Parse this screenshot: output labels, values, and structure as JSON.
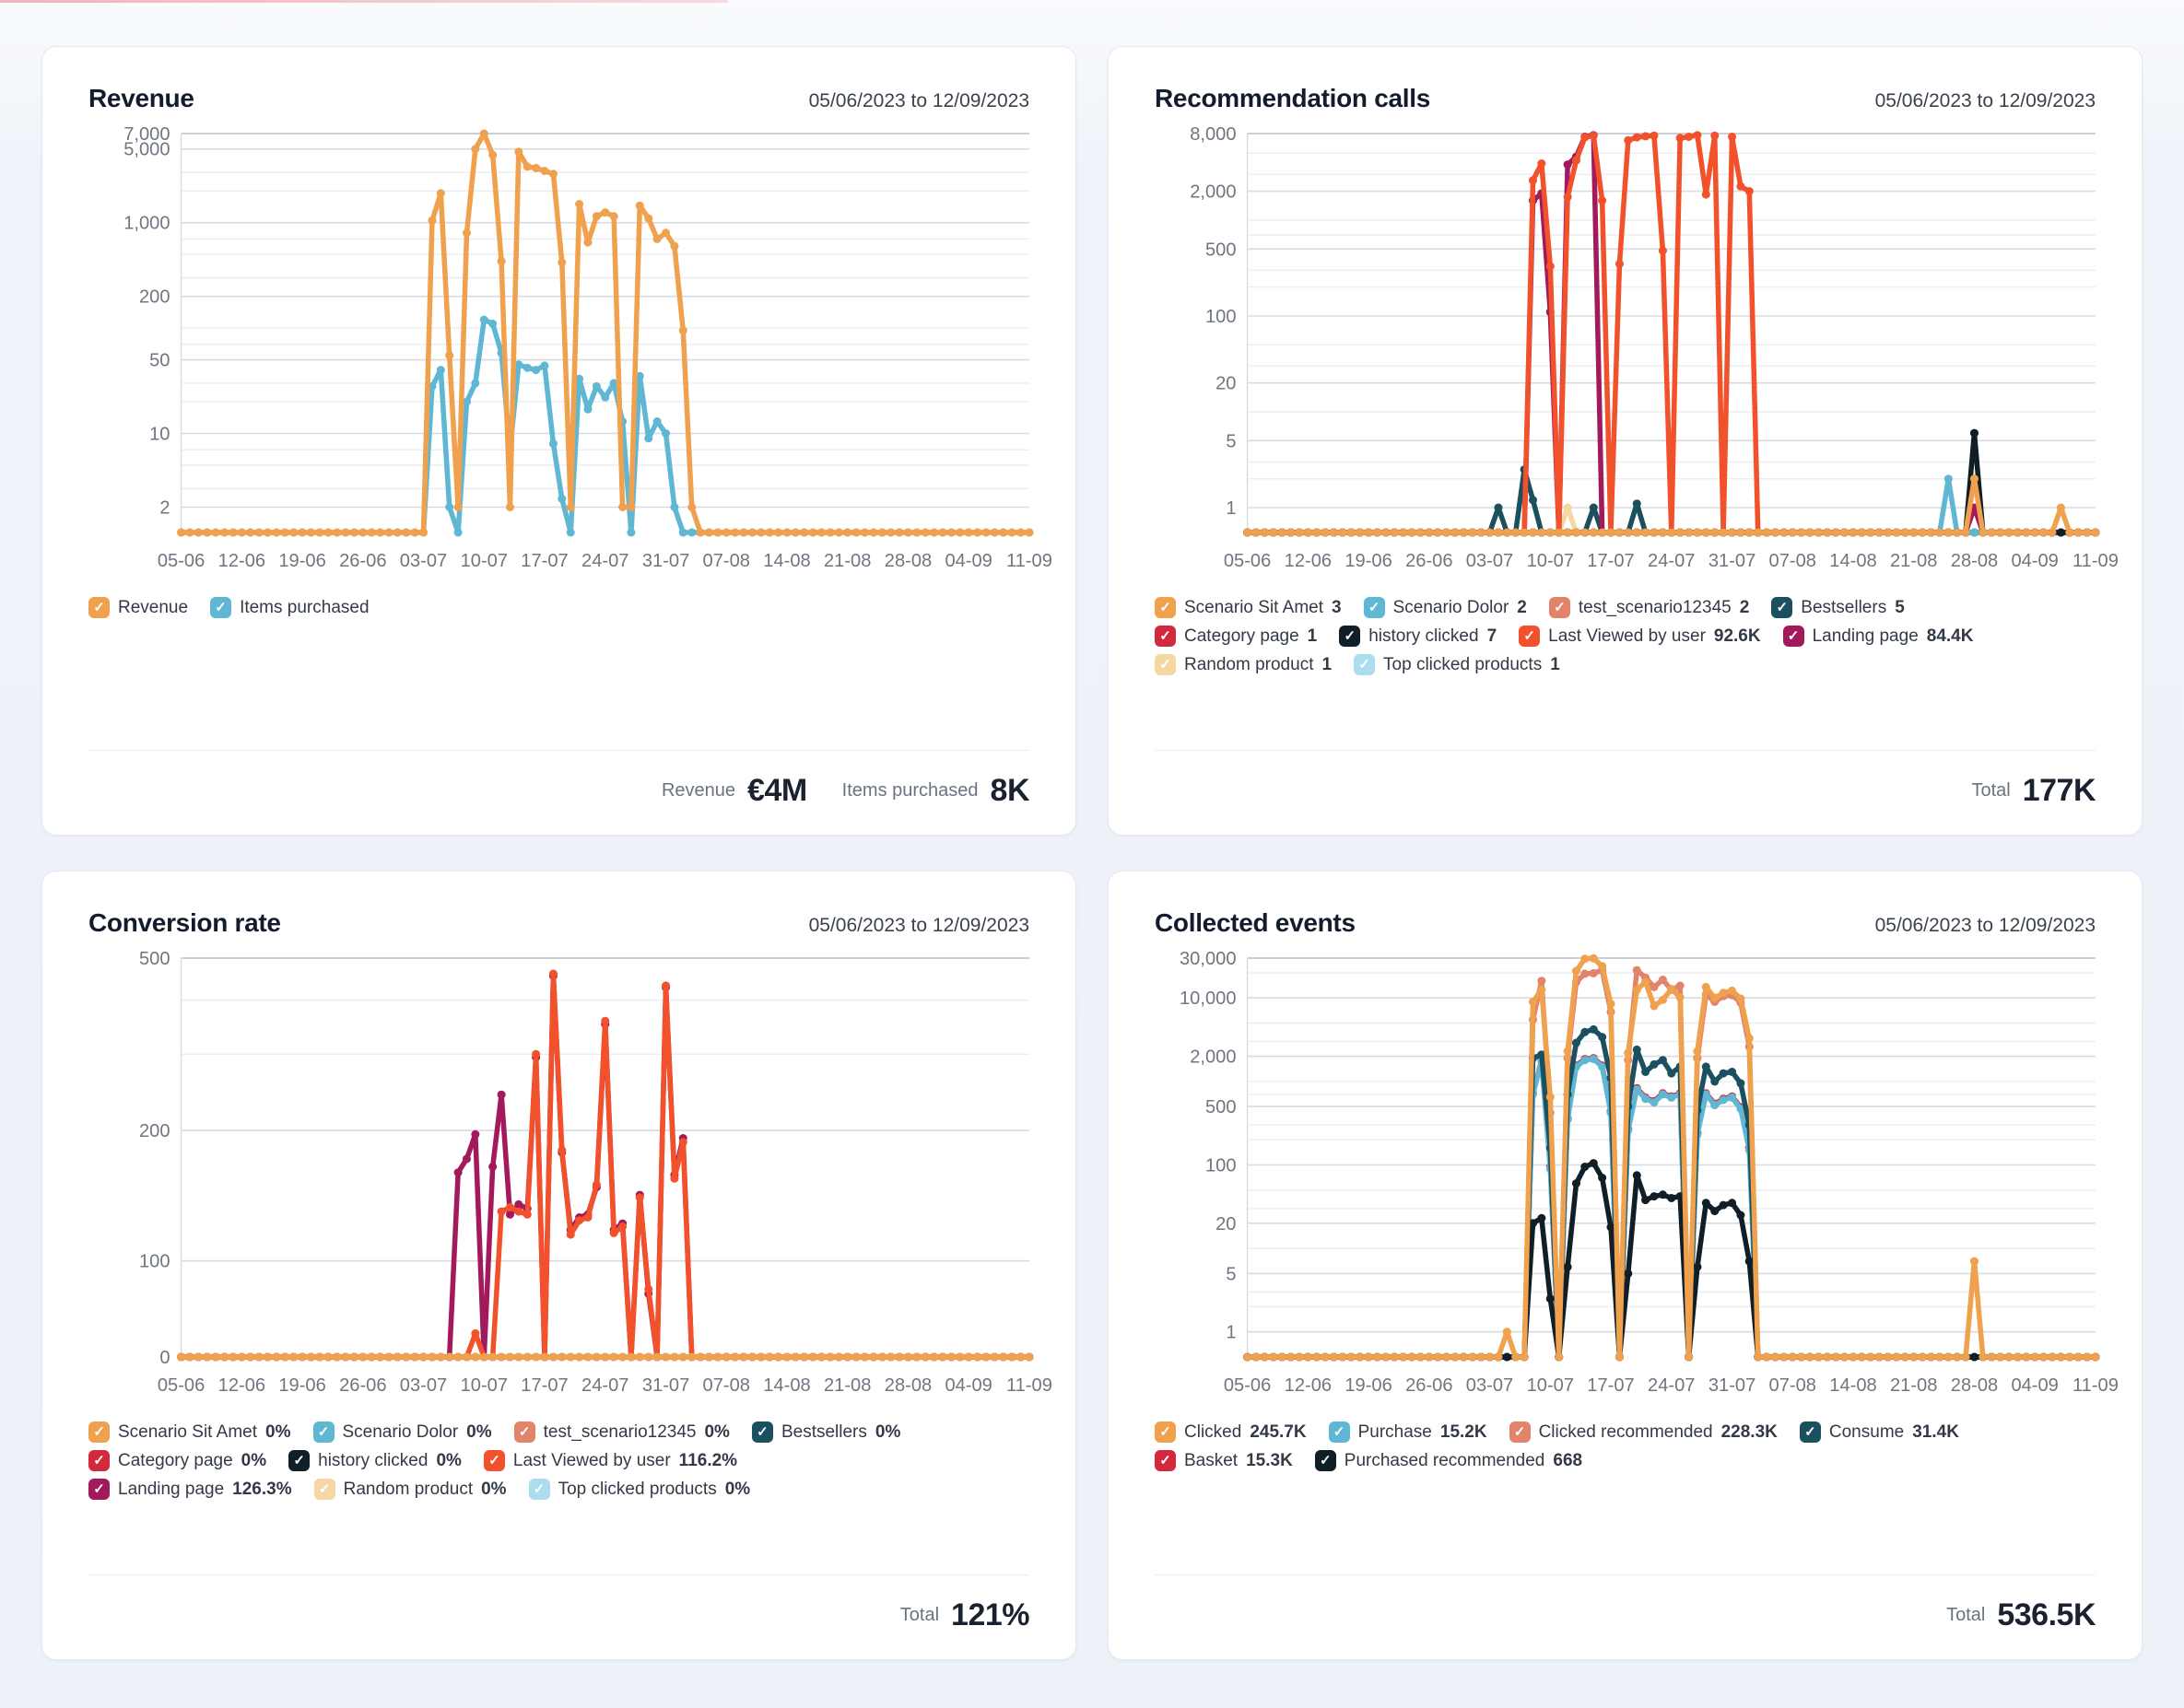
{
  "x_labels": [
    "05-06",
    "12-06",
    "19-06",
    "26-06",
    "03-07",
    "10-07",
    "17-07",
    "24-07",
    "31-07",
    "07-08",
    "14-08",
    "21-08",
    "28-08",
    "04-09",
    "11-09"
  ],
  "n_points": 99,
  "palette": {
    "orange": "#EFA14D",
    "blue": "#5FB7D4",
    "salmon": "#E2836B",
    "teal": "#1B505E",
    "red": "#D22A3C",
    "black": "#101E28",
    "orange_red": "#F1512B",
    "magenta": "#A21A5C",
    "pale_orange": "#F5D7A4",
    "pale_blue": "#ABDDEE",
    "grid_top": "#b9bfc9",
    "grid_major": "#d7dbe2",
    "grid_minor": "#ecedf1",
    "axis_text": "#6f7681"
  },
  "cards": [
    {
      "id": "revenue",
      "title": "Revenue",
      "date_range": "05/06/2023 to 12/09/2023",
      "chart_index": 0,
      "legend_rows": [
        [
          {
            "label": "Revenue",
            "value": "",
            "color": "#EFA14D"
          },
          {
            "label": "Items purchased",
            "value": "",
            "color": "#5FB7D4"
          }
        ]
      ],
      "footer": [
        {
          "label": "Revenue",
          "value": "€4M"
        },
        {
          "label": "Items purchased",
          "value": "8K"
        }
      ]
    },
    {
      "id": "recommendation-calls",
      "title": "Recommendation calls",
      "date_range": "05/06/2023 to 12/09/2023",
      "chart_index": 1,
      "legend_rows": [
        [
          {
            "label": "Scenario Sit Amet",
            "value": "3",
            "color": "#EFA14D"
          },
          {
            "label": "Scenario Dolor",
            "value": "2",
            "color": "#5FB7D4"
          },
          {
            "label": "test_scenario12345",
            "value": "2",
            "color": "#E2836B"
          },
          {
            "label": "Bestsellers",
            "value": "5",
            "color": "#1B505E"
          }
        ],
        [
          {
            "label": "Category page",
            "value": "1",
            "color": "#D22A3C"
          },
          {
            "label": "history clicked",
            "value": "7",
            "color": "#101E28"
          },
          {
            "label": "Last Viewed by user",
            "value": "92.6K",
            "color": "#F1512B"
          },
          {
            "label": "Landing page",
            "value": "84.4K",
            "color": "#A21A5C"
          }
        ],
        [
          {
            "label": "Random product",
            "value": "1",
            "color": "#F5D7A4"
          },
          {
            "label": "Top clicked products",
            "value": "1",
            "color": "#ABDDEE"
          }
        ]
      ],
      "footer": [
        {
          "label": "Total",
          "value": "177K"
        }
      ]
    },
    {
      "id": "conversion-rate",
      "title": "Conversion rate",
      "date_range": "05/06/2023 to 12/09/2023",
      "chart_index": 2,
      "legend_rows": [
        [
          {
            "label": "Scenario Sit Amet",
            "value": "0%",
            "color": "#EFA14D"
          },
          {
            "label": "Scenario Dolor",
            "value": "0%",
            "color": "#5FB7D4"
          },
          {
            "label": "test_scenario12345",
            "value": "0%",
            "color": "#E2836B"
          },
          {
            "label": "Bestsellers",
            "value": "0%",
            "color": "#1B505E"
          }
        ],
        [
          {
            "label": "Category page",
            "value": "0%",
            "color": "#D22A3C"
          },
          {
            "label": "history clicked",
            "value": "0%",
            "color": "#101E28"
          },
          {
            "label": "Last Viewed by user",
            "value": "116.2%",
            "color": "#F1512B"
          }
        ],
        [
          {
            "label": "Landing page",
            "value": "126.3%",
            "color": "#A21A5C"
          },
          {
            "label": "Random product",
            "value": "0%",
            "color": "#F5D7A4"
          },
          {
            "label": "Top clicked products",
            "value": "0%",
            "color": "#ABDDEE"
          }
        ]
      ],
      "footer": [
        {
          "label": "Total",
          "value": "121%"
        }
      ]
    },
    {
      "id": "collected-events",
      "title": "Collected events",
      "date_range": "05/06/2023 to 12/09/2023",
      "chart_index": 3,
      "legend_rows": [
        [
          {
            "label": "Clicked",
            "value": "245.7K",
            "color": "#EFA14D"
          },
          {
            "label": "Purchase",
            "value": "15.2K",
            "color": "#5FB7D4"
          },
          {
            "label": "Clicked recommended",
            "value": "228.3K",
            "color": "#E2836B"
          },
          {
            "label": "Consume",
            "value": "31.4K",
            "color": "#1B505E"
          }
        ],
        [
          {
            "label": "Basket",
            "value": "15.3K",
            "color": "#D22A3C"
          },
          {
            "label": "Purchased recommended",
            "value": "668",
            "color": "#101E28"
          }
        ]
      ],
      "footer": [
        {
          "label": "Total",
          "value": "536.5K"
        }
      ]
    }
  ],
  "chart_data": [
    {
      "type": "line",
      "title": "Revenue",
      "y_scale": "log",
      "x_tick_step_days": 7,
      "vmax": 7000,
      "floor": 1.15,
      "ticks": [
        {
          "label": "7,000",
          "v": 7000
        },
        {
          "label": "5,000",
          "v": 5000
        },
        {
          "label": "1,000",
          "v": 1000
        },
        {
          "label": "200",
          "v": 200
        },
        {
          "label": "50",
          "v": 50
        },
        {
          "label": "10",
          "v": 10
        },
        {
          "label": "2",
          "v": 2
        }
      ],
      "minor": [
        3000,
        2000,
        700,
        500,
        300,
        100,
        70,
        30,
        20,
        7,
        5,
        3
      ],
      "series": [
        {
          "name": "Items purchased",
          "color": "#5FB7D4",
          "points": {
            "29": 28,
            "30": 40,
            "31": 2,
            "33": 20,
            "34": 30,
            "35": 120,
            "36": 110,
            "37": 58,
            "38": 7,
            "39": 45,
            "40": 42,
            "41": 40,
            "42": 44,
            "43": 8,
            "44": 2.4,
            "46": 33,
            "47": 17,
            "48": 28,
            "49": 22,
            "50": 30,
            "51": 13,
            "53": 35,
            "54": 9,
            "55": 13,
            "56": 10,
            "57": 2
          }
        },
        {
          "name": "Revenue",
          "color": "#EFA14D",
          "points": {
            "29": 1050,
            "30": 1900,
            "31": 55,
            "32": 2,
            "33": 800,
            "34": 5000,
            "35": 7000,
            "36": 4400,
            "37": 430,
            "38": 2,
            "39": 4700,
            "40": 3400,
            "41": 3300,
            "42": 3100,
            "43": 2900,
            "44": 420,
            "45": 2,
            "46": 1500,
            "47": 650,
            "48": 1150,
            "49": 1250,
            "50": 1150,
            "51": 2,
            "52": 2,
            "53": 1450,
            "54": 1100,
            "55": 700,
            "56": 800,
            "57": 600,
            "58": 95,
            "59": 2
          }
        }
      ]
    },
    {
      "type": "line",
      "title": "Recommendation calls",
      "y_scale": "log",
      "x_tick_step_days": 7,
      "vmax": 8000,
      "floor": 0.55,
      "ticks": [
        {
          "label": "8,000",
          "v": 8000
        },
        {
          "label": "2,000",
          "v": 2000
        },
        {
          "label": "500",
          "v": 500
        },
        {
          "label": "100",
          "v": 100
        },
        {
          "label": "20",
          "v": 20
        },
        {
          "label": "5",
          "v": 5
        },
        {
          "label": "1",
          "v": 1
        }
      ],
      "minor": [
        5000,
        3000,
        1000,
        700,
        300,
        200,
        50,
        30,
        10,
        3,
        2
      ],
      "series": [
        {
          "name": "Top clicked products",
          "color": "#ABDDEE",
          "points": {}
        },
        {
          "name": "Random product",
          "color": "#F5D7A4",
          "points": {
            "37": 1
          }
        },
        {
          "name": "test_scenario12345",
          "color": "#E2836B",
          "points": {}
        },
        {
          "name": "Category page",
          "color": "#D22A3C",
          "points": {}
        },
        {
          "name": "Bestsellers",
          "color": "#1B505E",
          "points": {
            "29": 1,
            "32": 2.5,
            "33": 1.2,
            "40": 1,
            "45": 1.1
          }
        },
        {
          "name": "Landing page",
          "color": "#A21A5C",
          "points": {
            "33": 1600,
            "34": 1900,
            "35": 110,
            "37": 3800,
            "38": 4600,
            "39": 7400,
            "40": 7700,
            "84": 1
          }
        },
        {
          "name": "Last Viewed by user",
          "color": "#F1512B",
          "points": {
            "33": 2600,
            "34": 3900,
            "35": 330,
            "37": 1750,
            "38": 4200,
            "39": 7300,
            "40": 7600,
            "41": 1600,
            "43": 350,
            "44": 6800,
            "45": 7300,
            "46": 7500,
            "47": 7600,
            "48": 480,
            "50": 7200,
            "51": 7400,
            "52": 7700,
            "53": 1850,
            "54": 7600,
            "56": 7400,
            "57": 2250,
            "58": 2000
          }
        },
        {
          "name": "Scenario Dolor",
          "color": "#5FB7D4",
          "points": {
            "81": 2
          }
        },
        {
          "name": "history clicked",
          "color": "#101E28",
          "points": {
            "84": 6
          }
        },
        {
          "name": "Scenario Sit Amet",
          "color": "#EFA14D",
          "points": {
            "84": 2,
            "94": 1
          }
        }
      ]
    },
    {
      "type": "line",
      "title": "Conversion rate",
      "y_scale": "log",
      "x_tick_step_days": 7,
      "vmax": 500,
      "floor": 60,
      "ticks": [
        {
          "label": "500",
          "v": 500
        },
        {
          "label": "200",
          "v": 200
        },
        {
          "label": "100",
          "v": 100
        },
        {
          "label": "0",
          "v": 0
        }
      ],
      "minor": [
        400,
        300
      ],
      "series": [
        {
          "name": "Scenario Dolor",
          "color": "#5FB7D4",
          "points": {}
        },
        {
          "name": "test_scenario12345",
          "color": "#E2836B",
          "points": {}
        },
        {
          "name": "Bestsellers",
          "color": "#1B505E",
          "points": {}
        },
        {
          "name": "Category page",
          "color": "#D22A3C",
          "points": {}
        },
        {
          "name": "history clicked",
          "color": "#101E28",
          "points": {}
        },
        {
          "name": "Random product",
          "color": "#F5D7A4",
          "points": {}
        },
        {
          "name": "Top clicked products",
          "color": "#ABDDEE",
          "points": {}
        },
        {
          "name": "Landing page",
          "color": "#A21A5C",
          "points": {
            "32": 160,
            "33": 172,
            "34": 196,
            "35": 45,
            "36": 165,
            "37": 242,
            "38": 128,
            "39": 135,
            "40": 132,
            "41": 295,
            "43": 455,
            "44": 178,
            "45": 118,
            "46": 126,
            "47": 128,
            "48": 148,
            "49": 352,
            "50": 118,
            "51": 122,
            "53": 142,
            "54": 84,
            "56": 428,
            "57": 158,
            "58": 192,
            "59": 28
          }
        },
        {
          "name": "Last Viewed by user",
          "color": "#F1512B",
          "points": {
            "32": 35,
            "33": 42,
            "34": 68,
            "36": 55,
            "37": 130,
            "38": 133,
            "39": 130,
            "40": 128,
            "41": 300,
            "43": 460,
            "44": 180,
            "45": 115,
            "46": 124,
            "47": 126,
            "48": 150,
            "49": 358,
            "50": 116,
            "51": 120,
            "53": 140,
            "54": 86,
            "56": 432,
            "57": 155,
            "58": 188,
            "59": 25
          }
        },
        {
          "name": "Scenario Sit Amet",
          "color": "#EFA14D",
          "points": {}
        }
      ]
    },
    {
      "type": "line",
      "title": "Collected events",
      "y_scale": "log",
      "x_tick_step_days": 7,
      "vmax": 30000,
      "floor": 0.5,
      "ticks": [
        {
          "label": "30,000",
          "v": 30000
        },
        {
          "label": "10,000",
          "v": 10000
        },
        {
          "label": "2,000",
          "v": 2000
        },
        {
          "label": "500",
          "v": 500
        },
        {
          "label": "100",
          "v": 100
        },
        {
          "label": "20",
          "v": 20
        },
        {
          "label": "5",
          "v": 5
        },
        {
          "label": "1",
          "v": 1
        }
      ],
      "minor": [
        20000,
        5000,
        3000,
        1000,
        700,
        300,
        200,
        50,
        30,
        10,
        3,
        2
      ],
      "series": [
        {
          "name": "Clicked recommended",
          "color": "#E2836B",
          "points": {
            "33": 5500,
            "34": 16000,
            "35": 420,
            "37": 1900,
            "38": 15500,
            "39": 19500,
            "40": 19800,
            "41": 21500,
            "42": 6800,
            "44": 1800,
            "45": 21500,
            "46": 17500,
            "47": 13500,
            "48": 16500,
            "49": 12500,
            "50": 14000,
            "52": 1900,
            "53": 11000,
            "54": 9000,
            "55": 10500,
            "56": 10800,
            "57": 8800,
            "58": 2600
          }
        },
        {
          "name": "Basket",
          "color": "#D22A3C",
          "points": {
            "33": 720,
            "34": 1800,
            "35": 95,
            "37": 360,
            "38": 1550,
            "39": 1850,
            "40": 1900,
            "41": 1550,
            "42": 440,
            "44": 270,
            "45": 830,
            "46": 640,
            "47": 580,
            "48": 720,
            "49": 660,
            "50": 720,
            "52": 240,
            "53": 720,
            "54": 540,
            "55": 620,
            "56": 660,
            "57": 490,
            "58": 160
          }
        },
        {
          "name": "Purchase",
          "color": "#5FB7D4",
          "points": {
            "33": 700,
            "34": 1750,
            "35": 90,
            "37": 350,
            "38": 1500,
            "39": 1800,
            "40": 1850,
            "41": 1500,
            "42": 420,
            "44": 260,
            "45": 800,
            "46": 620,
            "47": 560,
            "48": 700,
            "49": 640,
            "50": 700,
            "52": 230,
            "53": 700,
            "54": 520,
            "55": 600,
            "56": 640,
            "57": 470,
            "58": 150
          }
        },
        {
          "name": "Consume",
          "color": "#1B505E",
          "points": {
            "33": 1900,
            "34": 2100,
            "35": 160,
            "37": 700,
            "38": 2900,
            "39": 3900,
            "40": 4200,
            "41": 3400,
            "42": 1100,
            "44": 500,
            "45": 2400,
            "46": 1300,
            "47": 1600,
            "48": 1800,
            "49": 1250,
            "50": 1500,
            "52": 450,
            "53": 1500,
            "54": 1000,
            "55": 1250,
            "56": 1300,
            "57": 950,
            "58": 300
          }
        },
        {
          "name": "Purchased recommended",
          "color": "#101E28",
          "points": {
            "33": 20,
            "34": 23,
            "35": 2.5,
            "37": 6,
            "38": 60,
            "39": 95,
            "40": 105,
            "41": 70,
            "42": 18,
            "44": 5,
            "45": 75,
            "46": 38,
            "47": 42,
            "48": 44,
            "49": 40,
            "50": 42,
            "52": 6,
            "53": 35,
            "54": 28,
            "55": 33,
            "56": 35,
            "57": 25,
            "58": 7
          }
        },
        {
          "name": "Clicked",
          "color": "#EFA14D",
          "points": {
            "30": 1,
            "33": 9000,
            "34": 12500,
            "35": 650,
            "37": 2300,
            "38": 21000,
            "39": 29500,
            "40": 29800,
            "41": 24000,
            "42": 8500,
            "44": 2200,
            "45": 12500,
            "46": 15500,
            "47": 8000,
            "48": 9500,
            "49": 12800,
            "50": 10200,
            "52": 2300,
            "53": 13500,
            "54": 10000,
            "55": 11500,
            "56": 12200,
            "57": 9800,
            "58": 3300,
            "84": 7
          }
        }
      ]
    }
  ]
}
